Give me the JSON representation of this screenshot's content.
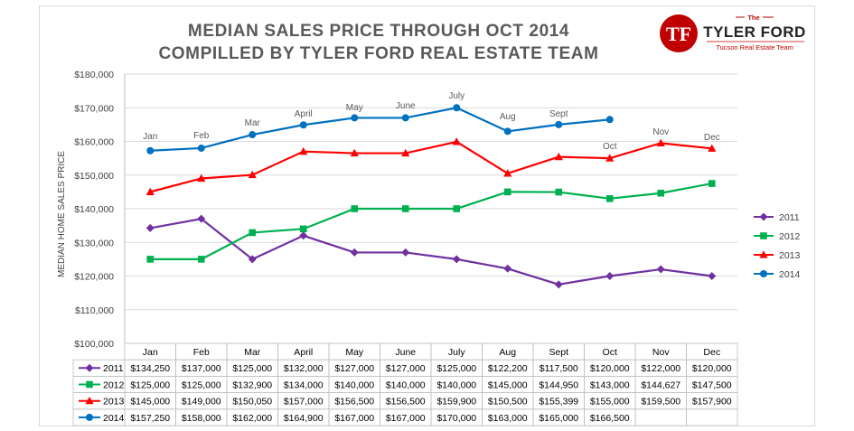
{
  "chart_data": {
    "type": "line",
    "title": [
      "MEDIAN SALES PRICE THROUGH OCT 2014",
      "COMPILLED BY TYLER FORD REAL ESTATE TEAM"
    ],
    "ylabel": "MEDIAN HOME SALES PRICE",
    "ylim": [
      100000,
      180000
    ],
    "y_ticks": [
      "$100,000",
      "$110,000",
      "$120,000",
      "$130,000",
      "$140,000",
      "$150,000",
      "$160,000",
      "$170,000",
      "$180,000"
    ],
    "categories": [
      "Jan",
      "Feb",
      "Mar",
      "April",
      "May",
      "June",
      "July",
      "Aug",
      "Sept",
      "Oct",
      "Nov",
      "Dec"
    ],
    "legend_position": "right",
    "grid": true,
    "series": [
      {
        "name": "2011",
        "color": "#7030a0",
        "marker": "diamond",
        "values": [
          134250,
          137000,
          125000,
          132000,
          127000,
          127000,
          125000,
          122200,
          117500,
          120000,
          122000,
          120000
        ],
        "labels": [
          "$134,250",
          "$137,000",
          "$125,000",
          "$132,000",
          "$127,000",
          "$127,000",
          "$125,000",
          "$122,200",
          "$117,500",
          "$120,000",
          "$122,000",
          "$120,000"
        ]
      },
      {
        "name": "2012",
        "color": "#00b050",
        "marker": "square",
        "values": [
          125000,
          125000,
          132900,
          134000,
          140000,
          140000,
          140000,
          145000,
          144950,
          143000,
          144627,
          147500
        ],
        "labels": [
          "$125,000",
          "$125,000",
          "$132,900",
          "$134,000",
          "$140,000",
          "$140,000",
          "$140,000",
          "$145,000",
          "$144,950",
          "$143,000",
          "$144,627",
          "$147,500"
        ]
      },
      {
        "name": "2013",
        "color": "#ff0000",
        "marker": "triangle",
        "values": [
          145000,
          149000,
          150050,
          157000,
          156500,
          156500,
          159900,
          150500,
          155399,
          155000,
          159500,
          157900
        ],
        "labels": [
          "$145,000",
          "$149,000",
          "$150,050",
          "$157,000",
          "$156,500",
          "$156,500",
          "$159,900",
          "$150,500",
          "$155,399",
          "$155,000",
          "$159,500",
          "$157,900"
        ]
      },
      {
        "name": "2014",
        "color": "#0070c0",
        "marker": "circle",
        "values": [
          157250,
          158000,
          162000,
          164900,
          167000,
          167000,
          170000,
          163000,
          165000,
          166500,
          null,
          null
        ],
        "labels": [
          "$157,250",
          "$158,000",
          "$162,000",
          "$164,900",
          "$167,000",
          "$167,000",
          "$170,000",
          "$163,000",
          "$165,000",
          "$166,500",
          "",
          ""
        ]
      }
    ],
    "month_annotations": [
      "Jan",
      "Feb",
      "Mar",
      "April",
      "May",
      "June",
      "July",
      "Aug",
      "Sept",
      "Oct",
      "Nov",
      "Dec"
    ]
  },
  "logo": {
    "the": "The",
    "name": "TYLER FORD",
    "tagline": "Tucson Real Estate Team",
    "mark": "TF",
    "color": "#c00000"
  }
}
